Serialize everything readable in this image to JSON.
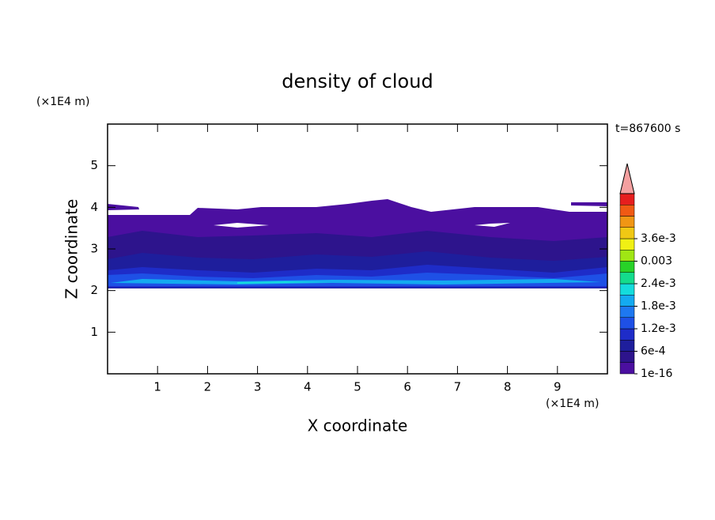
{
  "chart_data": {
    "type": "contour",
    "title": "density of cloud",
    "x_label": "X coordinate",
    "y_label": "Z coordinate",
    "x_unit": "(×1E4 m)",
    "y_unit": "(×1E4 m)",
    "time_label": "t=867600 s",
    "xlim": [
      0,
      10
    ],
    "ylim": [
      0,
      6
    ],
    "xticks": [
      1,
      2,
      3,
      4,
      5,
      6,
      7,
      8,
      9
    ],
    "yticks": [
      1,
      2,
      3,
      4,
      5
    ],
    "colorbar": {
      "ticks": [
        1e-16,
        {
          "value": 0.0006,
          "label": "6e-4"
        },
        {
          "value": 0.0012,
          "label": "1.2e-3"
        },
        {
          "value": 0.0018,
          "label": "1.8e-3"
        },
        {
          "value": 0.0024,
          "label": "2.4e-3"
        },
        0.003,
        {
          "value": 0.0036,
          "label": "3.6e-3"
        }
      ],
      "colors": [
        "#4b0fa0",
        "#2d148c",
        "#1e1e9c",
        "#1e2cc8",
        "#1e50e6",
        "#1e78f0",
        "#14aaf0",
        "#14dcdc",
        "#14dc8c",
        "#28d228",
        "#a0e614",
        "#f0f014",
        "#f0c814",
        "#f09614",
        "#f05a14",
        "#e61e1e"
      ],
      "extend_color": "#f4a0a0"
    }
  }
}
